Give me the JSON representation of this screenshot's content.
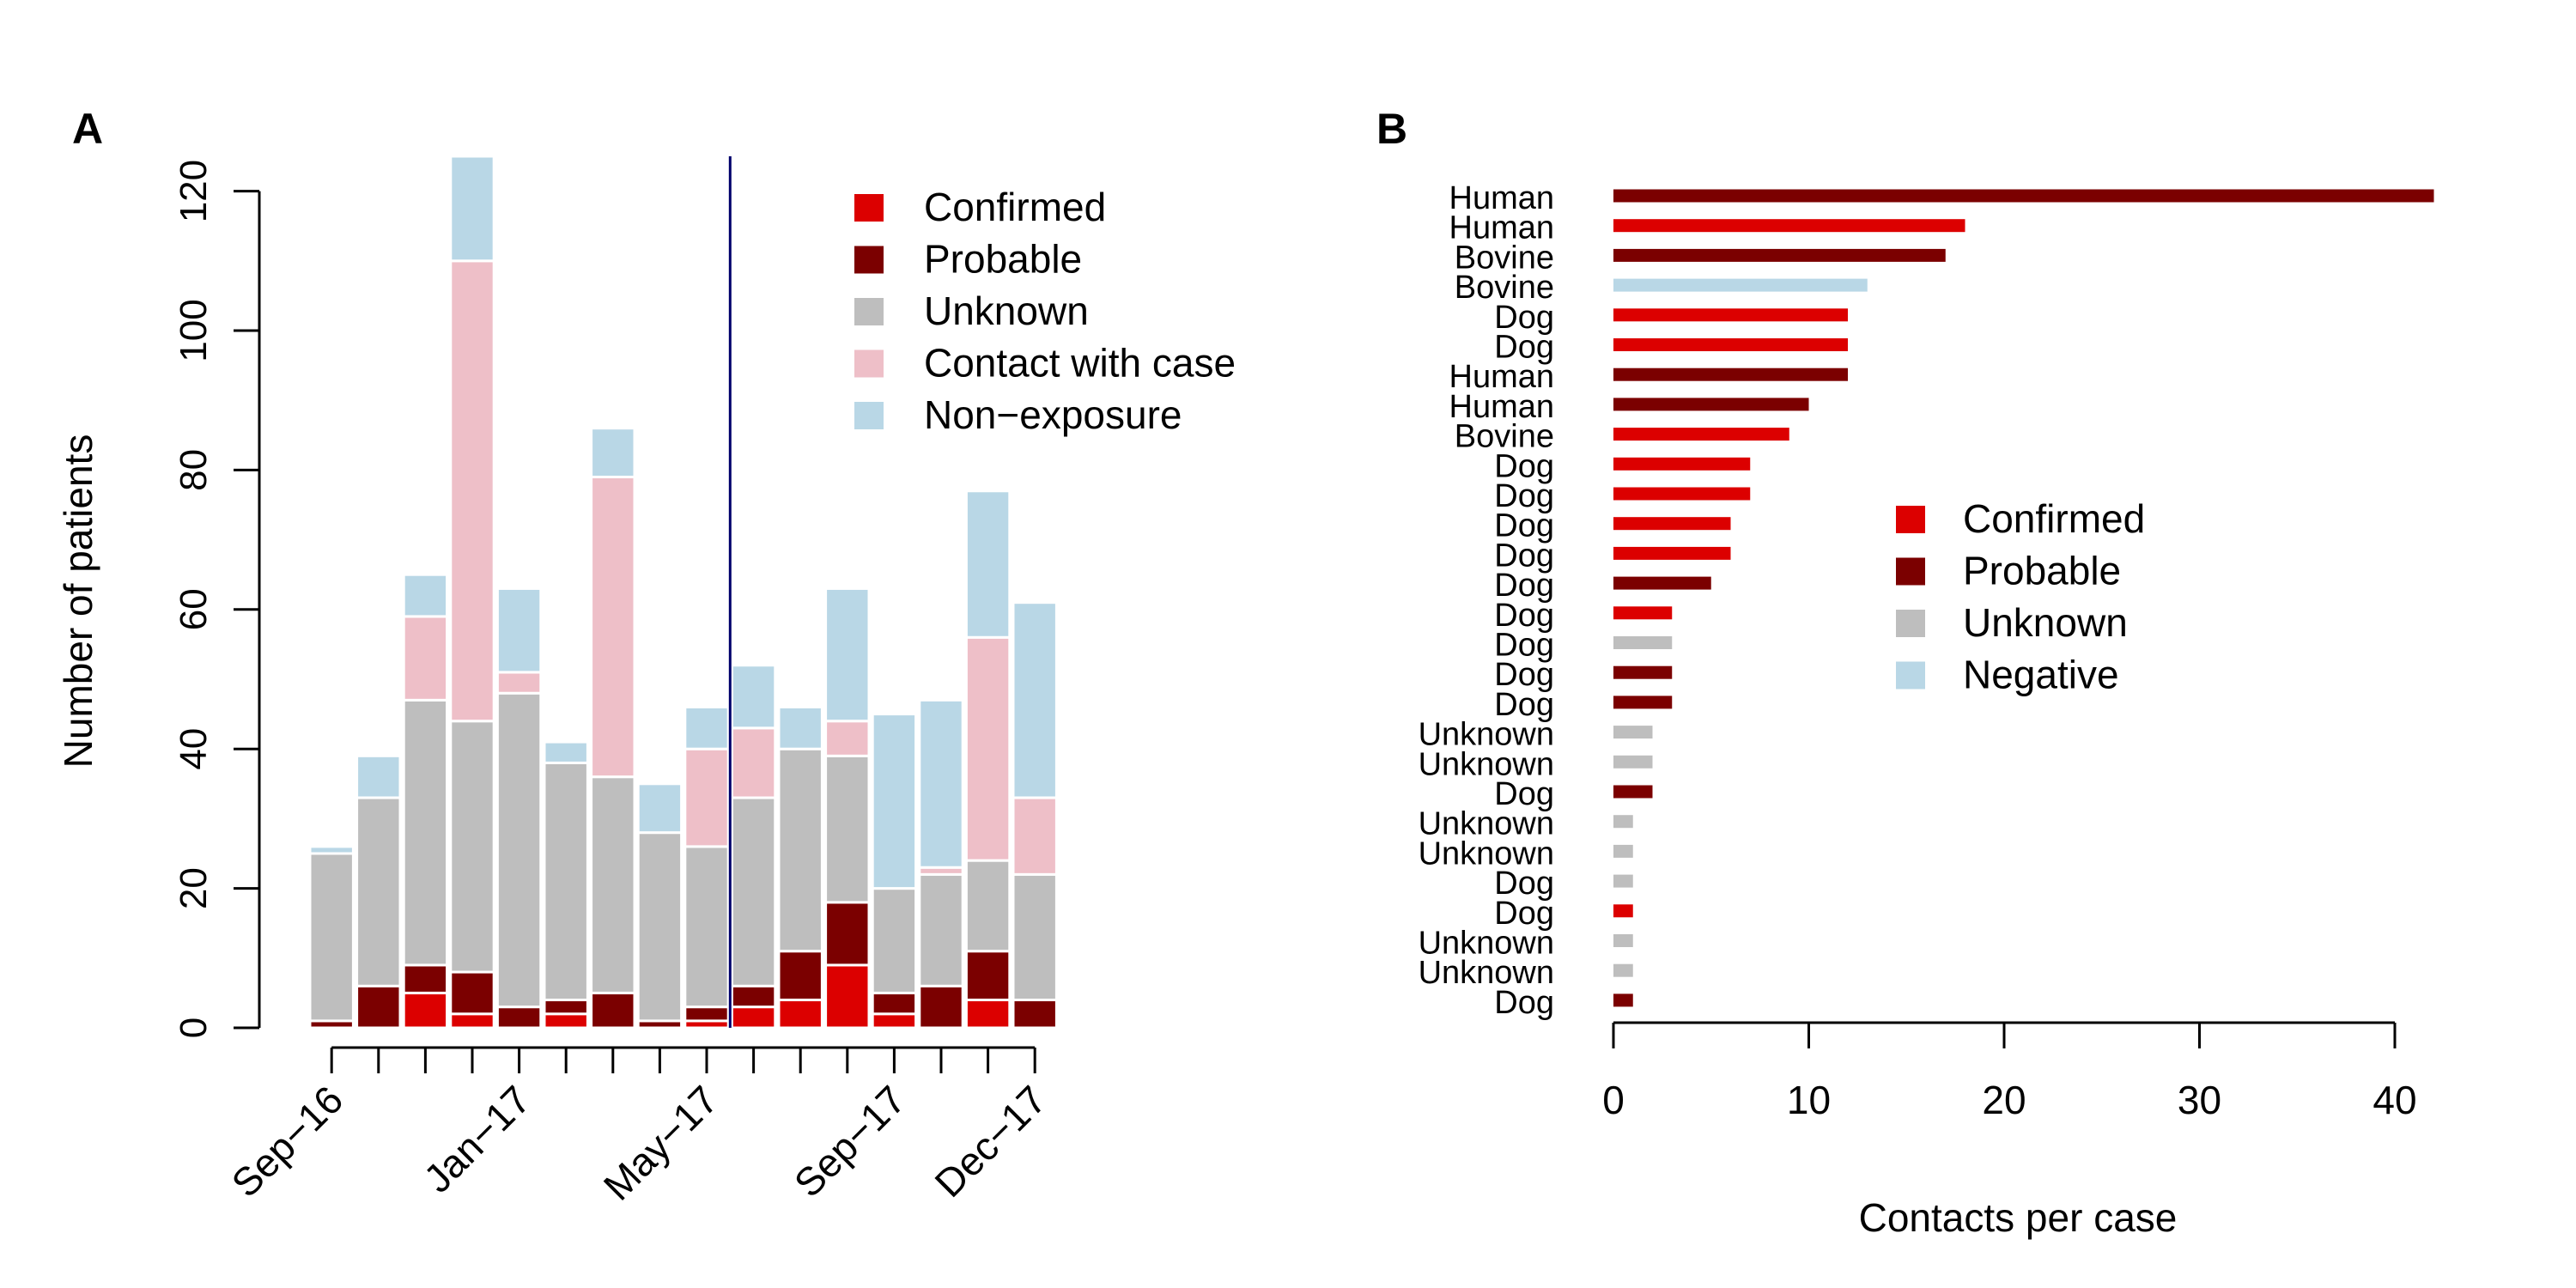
{
  "chart_data": [
    {
      "panel": "A",
      "type": "bar",
      "stacked": true,
      "ylabel": "Number of patients",
      "ylim": [
        0,
        125
      ],
      "yticks": [
        0,
        20,
        40,
        60,
        80,
        100,
        120
      ],
      "xtick_labels": [
        {
          "label": "Sep−16",
          "index": 0
        },
        {
          "label": "Jan−17",
          "index": 4
        },
        {
          "label": "May−17",
          "index": 8
        },
        {
          "label": "Sep−17",
          "index": 12
        },
        {
          "label": "Dec−17",
          "index": 15
        }
      ],
      "vline_between": [
        8,
        9
      ],
      "legend_position": "top-right",
      "series": [
        {
          "name": "Confirmed",
          "color": "#dc0000",
          "values": [
            0,
            0,
            5,
            2,
            0,
            2,
            0,
            0,
            1,
            3,
            4,
            9,
            2,
            0,
            4,
            0
          ]
        },
        {
          "name": "Probable",
          "color": "#7b0000",
          "values": [
            1,
            6,
            4,
            6,
            3,
            2,
            5,
            1,
            2,
            3,
            7,
            9,
            3,
            6,
            7,
            4
          ]
        },
        {
          "name": "Unknown",
          "color": "#bebebe",
          "values": [
            24,
            27,
            38,
            36,
            45,
            34,
            31,
            27,
            23,
            27,
            29,
            21,
            15,
            16,
            13,
            18
          ]
        },
        {
          "name": "Contact with case",
          "color": "#eebfc8",
          "values": [
            0,
            0,
            12,
            66,
            3,
            0,
            43,
            0,
            14,
            10,
            0,
            5,
            0,
            1,
            32,
            11
          ]
        },
        {
          "name": "Non−exposure",
          "color": "#b9d7e6",
          "values": [
            1,
            6,
            6,
            15,
            12,
            3,
            7,
            7,
            6,
            9,
            6,
            19,
            25,
            24,
            21,
            28
          ]
        }
      ]
    },
    {
      "panel": "B",
      "type": "bar",
      "orientation": "horizontal",
      "xlabel": "Contacts per case",
      "xlim": [
        0,
        40
      ],
      "xticks": [
        0,
        10,
        20,
        30,
        40
      ],
      "legend_position": "center",
      "legend": [
        {
          "name": "Confirmed",
          "color": "#dc0000"
        },
        {
          "name": "Probable",
          "color": "#7b0000"
        },
        {
          "name": "Unknown",
          "color": "#bebebe"
        },
        {
          "name": "Negative",
          "color": "#b9d7e6"
        }
      ],
      "bars": [
        {
          "label": "Human",
          "value": 42,
          "status": "Probable"
        },
        {
          "label": "Human",
          "value": 18,
          "status": "Confirmed"
        },
        {
          "label": "Bovine",
          "value": 17,
          "status": "Probable"
        },
        {
          "label": "Bovine",
          "value": 13,
          "status": "Negative"
        },
        {
          "label": "Dog",
          "value": 12,
          "status": "Confirmed"
        },
        {
          "label": "Dog",
          "value": 12,
          "status": "Confirmed"
        },
        {
          "label": "Human",
          "value": 12,
          "status": "Probable"
        },
        {
          "label": "Human",
          "value": 10,
          "status": "Probable"
        },
        {
          "label": "Bovine",
          "value": 9,
          "status": "Confirmed"
        },
        {
          "label": "Dog",
          "value": 7,
          "status": "Confirmed"
        },
        {
          "label": "Dog",
          "value": 7,
          "status": "Confirmed"
        },
        {
          "label": "Dog",
          "value": 6,
          "status": "Confirmed"
        },
        {
          "label": "Dog",
          "value": 6,
          "status": "Confirmed"
        },
        {
          "label": "Dog",
          "value": 5,
          "status": "Probable"
        },
        {
          "label": "Dog",
          "value": 3,
          "status": "Confirmed"
        },
        {
          "label": "Dog",
          "value": 3,
          "status": "Unknown"
        },
        {
          "label": "Dog",
          "value": 3,
          "status": "Probable"
        },
        {
          "label": "Dog",
          "value": 3,
          "status": "Probable"
        },
        {
          "label": "Unknown",
          "value": 2,
          "status": "Unknown"
        },
        {
          "label": "Unknown",
          "value": 2,
          "status": "Unknown"
        },
        {
          "label": "Dog",
          "value": 2,
          "status": "Probable"
        },
        {
          "label": "Unknown",
          "value": 1,
          "status": "Unknown"
        },
        {
          "label": "Unknown",
          "value": 1,
          "status": "Unknown"
        },
        {
          "label": "Dog",
          "value": 1,
          "status": "Unknown"
        },
        {
          "label": "Dog",
          "value": 1,
          "status": "Confirmed"
        },
        {
          "label": "Unknown",
          "value": 1,
          "status": "Unknown"
        },
        {
          "label": "Unknown",
          "value": 1,
          "status": "Unknown"
        },
        {
          "label": "Dog",
          "value": 1,
          "status": "Probable"
        }
      ]
    }
  ]
}
